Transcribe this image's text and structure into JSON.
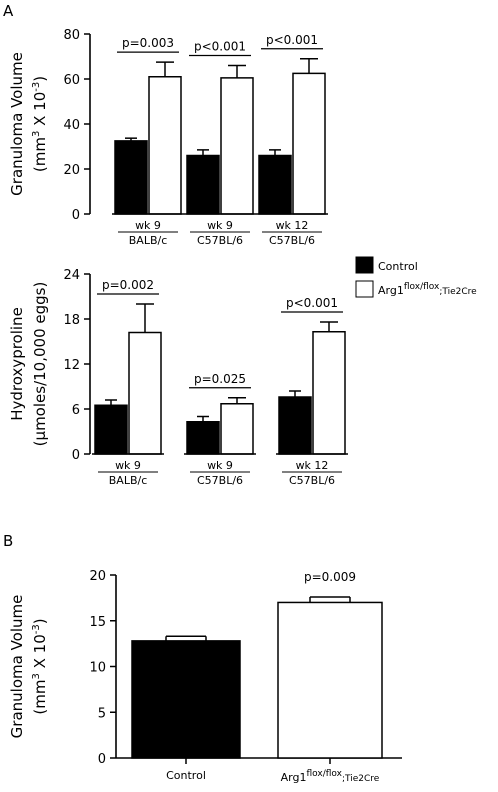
{
  "panel_labels": [
    "A",
    "B"
  ],
  "legend": {
    "control": "Control",
    "knockout_main": "Arg1",
    "knockout_sup": "flox/flox",
    "knockout_sub": ";Tie2Cre"
  },
  "colors": {
    "control": "#000000",
    "knockout": "#ffffff",
    "axis": "#000000"
  },
  "chart_data": [
    {
      "type": "bar",
      "ylabel_line1": "Granuloma Volume",
      "ylabel_line2_pre": "(mm",
      "ylabel_line2_sup": "3",
      "ylabel_line2_mid": " X 10",
      "ylabel_line2_sup2": "-3",
      "ylabel_line2_post": ")",
      "ylim": [
        0,
        80
      ],
      "yticks": [
        "0",
        "20",
        "40",
        "60",
        "80"
      ],
      "groups": [
        {
          "line1": "wk 9",
          "line2": "BALB/c",
          "control": 32.5,
          "control_err": 1.2,
          "knockout": 61,
          "knockout_err": 6.5,
          "p": "p=0.003"
        },
        {
          "line1": "wk 9",
          "line2": "C57BL/6",
          "control": 26,
          "control_err": 2.5,
          "knockout": 60.5,
          "knockout_err": 5.5,
          "p": "p<0.001"
        },
        {
          "line1": "wk 12",
          "line2": "C57BL/6",
          "control": 26,
          "control_err": 2.5,
          "knockout": 62.5,
          "knockout_err": 6.5,
          "p": "p<0.001"
        }
      ]
    },
    {
      "type": "bar",
      "ylabel_line1": "Hydroxyproline",
      "ylabel_line2": "(μmoles/10,000 eggs)",
      "ylim": [
        0,
        24
      ],
      "yticks": [
        "0",
        "6",
        "12",
        "18",
        "24"
      ],
      "groups": [
        {
          "line1": "wk 9",
          "line2": "BALB/c",
          "control": 6.5,
          "control_err": 0.7,
          "knockout": 16.2,
          "knockout_err": 3.8,
          "p": "p=0.002"
        },
        {
          "line1": "wk 9",
          "line2": "C57BL/6",
          "control": 4.3,
          "control_err": 0.7,
          "knockout": 6.7,
          "knockout_err": 0.8,
          "p": "p=0.025"
        },
        {
          "line1": "wk 12",
          "line2": "C57BL/6",
          "control": 7.6,
          "control_err": 0.8,
          "knockout": 16.3,
          "knockout_err": 1.3,
          "p": "p<0.001"
        }
      ]
    },
    {
      "type": "bar",
      "ylabel_line1": "Granuloma Volume",
      "ylabel_line2_pre": "(mm",
      "ylabel_line2_sup": "3",
      "ylabel_line2_mid": " X 10",
      "ylabel_line2_sup2": "-3",
      "ylabel_line2_post": ")",
      "ylim": [
        0,
        20
      ],
      "yticks": [
        "0",
        "5",
        "10",
        "15",
        "20"
      ],
      "categories": [
        "Control",
        "Arg1"
      ],
      "knockout_label_sup": "flox/flox",
      "knockout_label_sub": ";Tie2Cre",
      "values": [
        12.8,
        17.0
      ],
      "errors": [
        0.5,
        0.6
      ],
      "p": "p=0.009"
    }
  ]
}
